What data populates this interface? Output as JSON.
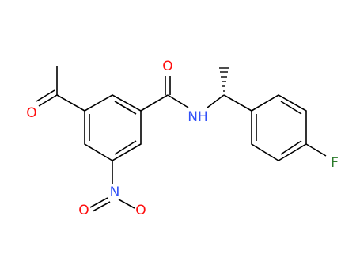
{
  "atoms": [
    {
      "label": "O"
    },
    {
      "label": "O"
    },
    {
      "label": "NH"
    },
    {
      "label": "N"
    },
    {
      "label": "O"
    },
    {
      "label": "O"
    },
    {
      "label": "F"
    }
  ]
}
